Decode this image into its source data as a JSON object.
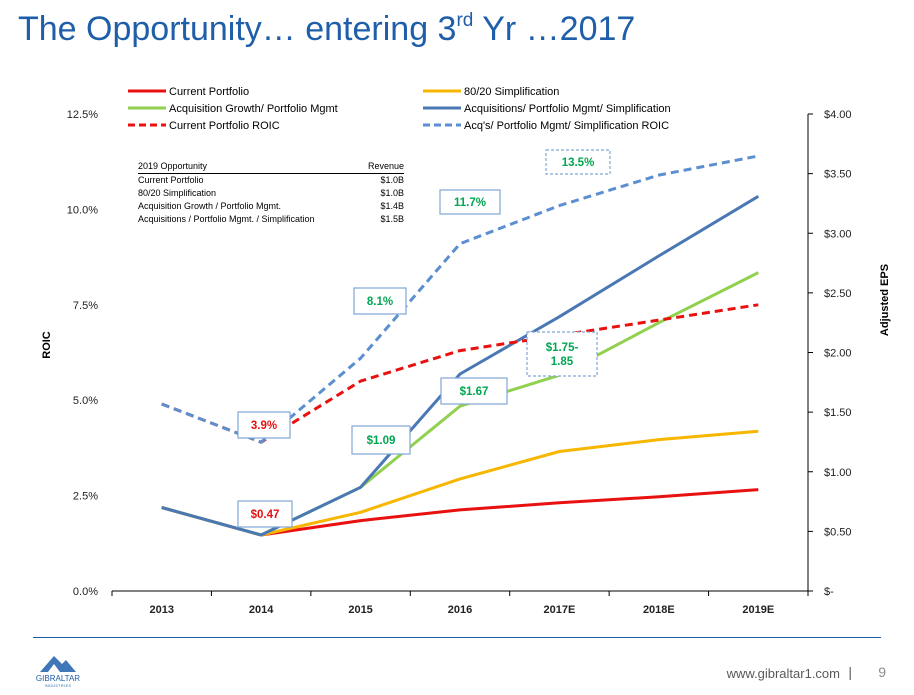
{
  "title": {
    "main": "The Opportunity… entering 3",
    "superscript": "rd",
    "rest": " Yr …2017"
  },
  "footer": {
    "url": "www.gibraltar1.com",
    "separator": "|",
    "page_number": "9",
    "logo_text": "GIBRALTAR",
    "logo_subtext": "INDUSTRIES"
  },
  "opportunity_table": {
    "header": [
      "2019 Opportunity",
      "Revenue"
    ],
    "rows": [
      [
        "Current Portfolio",
        "$1.0B"
      ],
      [
        "80/20 Simplification",
        "$1.0B"
      ],
      [
        "Acquisition Growth / Portfolio Mgmt.",
        "$1.4B"
      ],
      [
        "Acquisitions  / Portfolio Mgmt. / Simplification",
        "$1.5B"
      ]
    ]
  },
  "colors": {
    "title": "#1f5ea8",
    "red": "#e8110f",
    "yellow": "#f7b600",
    "green": "#92d050",
    "blue": "#4a78b5",
    "lightblue": "#5b8fd0",
    "label_green": "#00a651",
    "label_red": "#e8110f",
    "box_border": "#7fa7d6"
  },
  "chart_data": {
    "type": "line",
    "categories": [
      "2013",
      "2014",
      "2015",
      "2016",
      "2017E",
      "2018E",
      "2019E"
    ],
    "left_axis": {
      "label": "ROIC",
      "ticks": [
        "0.0%",
        "2.5%",
        "5.0%",
        "7.5%",
        "10.0%",
        "12.5%"
      ],
      "ylim": [
        0,
        12.5
      ]
    },
    "right_axis": {
      "label": "Adjusted EPS",
      "ticks": [
        "$-",
        "$0.50",
        "$1.00",
        "$1.50",
        "$2.00",
        "$2.50",
        "$3.00",
        "$3.50",
        "$4.00"
      ],
      "ylim": [
        0,
        4.0
      ]
    },
    "series": [
      {
        "name": "Current Portfolio",
        "axis": "right",
        "style": "solid",
        "color": "#e8110f",
        "values": [
          0.7,
          0.47,
          0.59,
          0.68,
          0.74,
          0.79,
          0.85
        ]
      },
      {
        "name": "80/20 Simplification",
        "axis": "right",
        "style": "solid",
        "color": "#f7b600",
        "values": [
          0.7,
          0.47,
          0.66,
          0.94,
          1.17,
          1.27,
          1.34
        ]
      },
      {
        "name": "Acquisition Growth/ Portfolio Mgmt",
        "axis": "right",
        "style": "solid",
        "color": "#92d050",
        "values": [
          0.7,
          0.47,
          0.87,
          1.55,
          1.81,
          2.25,
          2.67
        ]
      },
      {
        "name": "Acquisitions/ Portfolio Mgmt/ Simplification",
        "axis": "right",
        "style": "solid",
        "color": "#4a78b5",
        "values": [
          0.7,
          0.47,
          0.87,
          1.82,
          2.3,
          2.81,
          3.31
        ]
      },
      {
        "name": "Current Portfolio ROIC",
        "axis": "left",
        "style": "dashed",
        "color": "#e8110f",
        "values": [
          4.9,
          3.9,
          5.5,
          6.3,
          6.7,
          7.1,
          7.5
        ]
      },
      {
        "name": "Acq's/ Portfolio Mgmt/ Simplification ROIC",
        "axis": "left",
        "style": "dashed",
        "color": "#5b8fd0",
        "values": [
          4.9,
          3.9,
          6.1,
          9.1,
          10.1,
          10.9,
          11.4
        ]
      }
    ],
    "annotations": [
      {
        "text": "3.9%",
        "color": "red",
        "category": "2014"
      },
      {
        "text": "$0.47",
        "color": "red",
        "category": "2014"
      },
      {
        "text": "$1.09",
        "color": "green",
        "category": "2015"
      },
      {
        "text": "8.1%",
        "color": "green",
        "category": "2015"
      },
      {
        "text": "11.7%",
        "color": "green",
        "category": "2016"
      },
      {
        "text": "$1.67",
        "color": "green",
        "category": "2016"
      },
      {
        "text": "13.5%",
        "color": "green",
        "category": "2017E"
      },
      {
        "text": "$1.75-\n1.85",
        "color": "green",
        "category": "2017E"
      }
    ],
    "legend_position": "top"
  }
}
